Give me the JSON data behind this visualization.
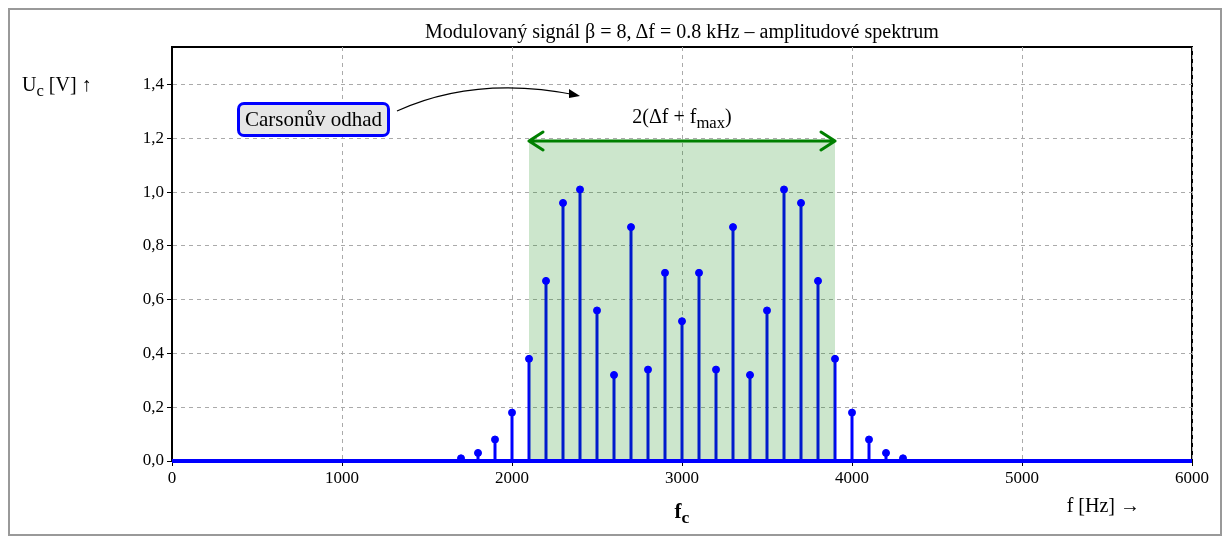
{
  "chart_data": {
    "type": "lollipop",
    "title": "Modulovaný signál β = 8, Δf = 0.8 kHz – amplitudové spektrum",
    "xlabel": "f [Hz] →",
    "ylabel": "U$_{c}$ [V] ↑",
    "xlim": [
      0,
      6000
    ],
    "xticks": [
      0,
      1000,
      2000,
      3000,
      4000,
      5000,
      6000
    ],
    "ylim": [
      0,
      1.54
    ],
    "yticks": [
      {
        "value": 0,
        "label": "0,0"
      },
      {
        "value": 0.2,
        "label": "0,2"
      },
      {
        "value": 0.4,
        "label": "0,4"
      },
      {
        "value": 0.6,
        "label": "0,6"
      },
      {
        "value": 0.8,
        "label": "0,8"
      },
      {
        "value": 1.0,
        "label": "1,0"
      },
      {
        "value": 1.2,
        "label": "1,2"
      },
      {
        "value": 1.4,
        "label": "1,4"
      }
    ],
    "grid": true,
    "legend": false,
    "series": [
      {
        "type": "area",
        "name": "2(Δf + f$_{max}$)",
        "color": "#008000",
        "x": [
          2100,
          3900
        ],
        "values": [
          1.19,
          1.19
        ]
      },
      {
        "marker": "circle",
        "color": "#0000ff",
        "x": [
          1700,
          1800,
          1900,
          2000,
          2100,
          2200,
          2300,
          2400,
          2500,
          2600,
          2700,
          2800,
          2900,
          3000,
          3100,
          3200,
          3300,
          3400,
          3500,
          3600,
          3700,
          3800,
          3900,
          4000,
          4100,
          4200,
          4300
        ],
        "values": [
          0.01,
          0.03,
          0.08,
          0.18,
          0.38,
          0.67,
          0.96,
          1.01,
          0.56,
          0.32,
          0.87,
          0.34,
          0.7,
          0.52,
          0.7,
          0.34,
          0.87,
          0.32,
          0.56,
          1.01,
          0.96,
          0.67,
          0.38,
          0.18,
          0.08,
          0.03,
          0.01
        ]
      }
    ],
    "ref_lines": [
      {
        "axis": "y",
        "value": 0,
        "color": "#0000ff"
      }
    ],
    "annotations": [
      "Carsonův odhad",
      "f$_{c}$"
    ]
  }
}
